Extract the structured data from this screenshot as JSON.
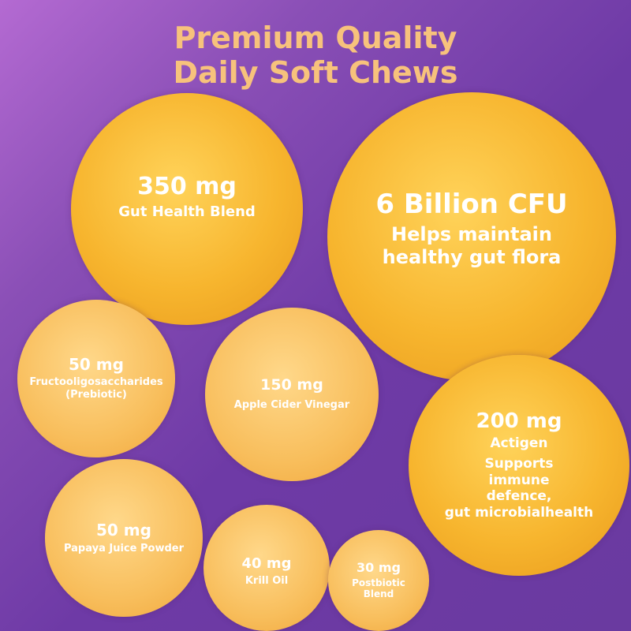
{
  "title": {
    "line1": "Premium Quality",
    "line2": "Daily Soft Chews"
  },
  "colors": {
    "title": "#f7c27c",
    "circle": "#f7b52e",
    "background": "#6e3aa6"
  },
  "ingredients": [
    {
      "amount": "350 mg",
      "label": "Gut Health Blend"
    },
    {
      "amount": "6 Billion CFU",
      "label": "Helps maintain healthy gut flora"
    },
    {
      "amount": "50 mg",
      "label": "Fructooligosaccharides",
      "label2": "(Prebiotic)"
    },
    {
      "amount": "150 mg",
      "label": "Apple Cider Vinegar"
    },
    {
      "amount": "200 mg",
      "label": "Actigen",
      "label2": "Supports immune defence,",
      "label3": "gut microbialhealth"
    },
    {
      "amount": "50 mg",
      "label": "Papaya Juice Powder"
    },
    {
      "amount": "40 mg",
      "label": "Krill Oil"
    },
    {
      "amount": "30 mg",
      "label": "Postbiotic",
      "label2": "Blend"
    }
  ]
}
